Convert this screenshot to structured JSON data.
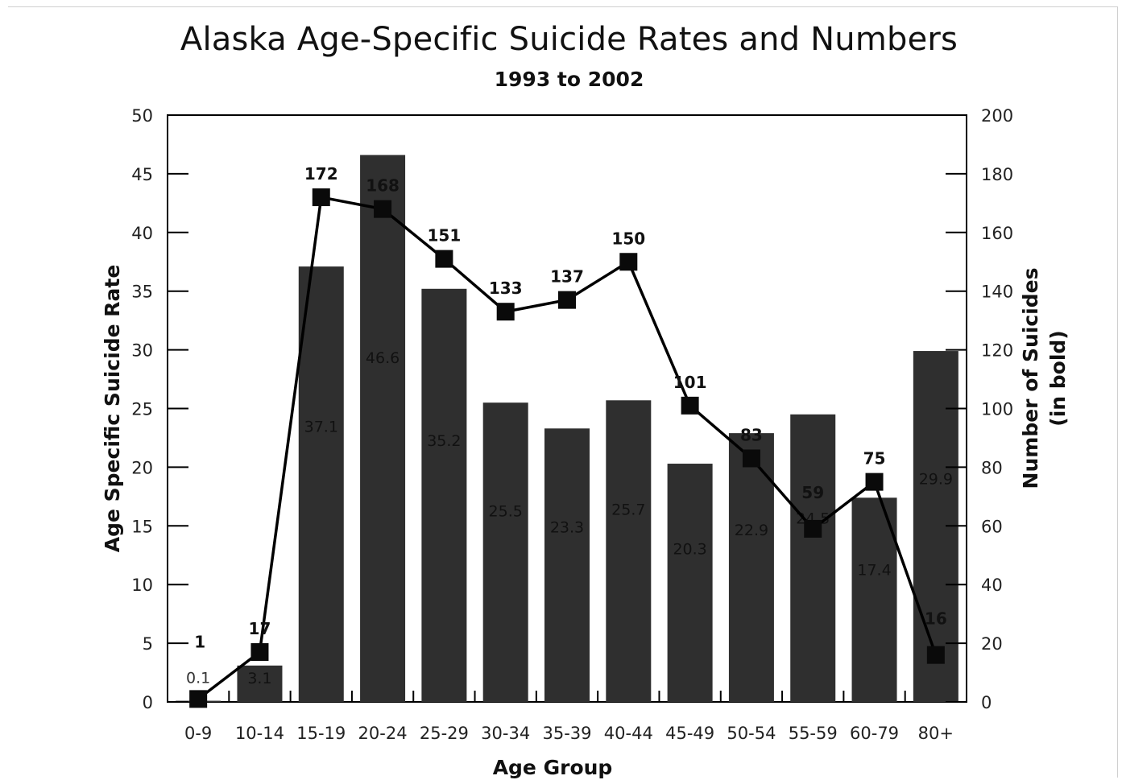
{
  "chart_data": {
    "type": "bar",
    "title": "Alaska Age-Specific Suicide Rates and Numbers",
    "subtitle": "1993 to 2002",
    "xlabel": "Age Group",
    "ylabel": "Age Specific Suicide Rate",
    "y2label_line1": "Number of Suicides",
    "y2label_line2": "(in bold)",
    "ylim": [
      0,
      50
    ],
    "y2lim": [
      0,
      200
    ],
    "yticks": [
      0,
      5,
      10,
      15,
      20,
      25,
      30,
      35,
      40,
      45,
      50
    ],
    "y2ticks": [
      0,
      20,
      40,
      60,
      80,
      100,
      120,
      140,
      160,
      180,
      200
    ],
    "categories": [
      "0-9",
      "10-14",
      "15-19",
      "20-24",
      "25-29",
      "30-34",
      "35-39",
      "40-44",
      "45-49",
      "50-54",
      "55-59",
      "60-79",
      "80+"
    ],
    "series": [
      {
        "type": "bar",
        "axis": "left",
        "values": [
          0.1,
          3.1,
          37.1,
          46.6,
          35.2,
          25.5,
          23.3,
          25.7,
          20.3,
          22.9,
          24.5,
          17.4,
          29.9
        ],
        "labels": [
          "0.1",
          "3.1",
          "37.1",
          "46.6",
          "35.2",
          "25.5",
          "23.3",
          "25.7",
          "20.3",
          "22.9",
          "24.5",
          "17.4",
          "29.9"
        ]
      },
      {
        "type": "line",
        "axis": "right",
        "values": [
          1,
          17,
          172,
          168,
          151,
          133,
          137,
          150,
          101,
          83,
          59,
          75,
          16
        ],
        "labels": [
          "1",
          "17",
          "172",
          "168",
          "151",
          "133",
          "137",
          "150",
          "101",
          "83",
          "59",
          "75",
          "16"
        ]
      }
    ],
    "grid": false,
    "colors": {
      "bar": "#2f2f2f",
      "line": "#000000",
      "marker": "#0a0a0a",
      "axis": "#000000"
    }
  }
}
